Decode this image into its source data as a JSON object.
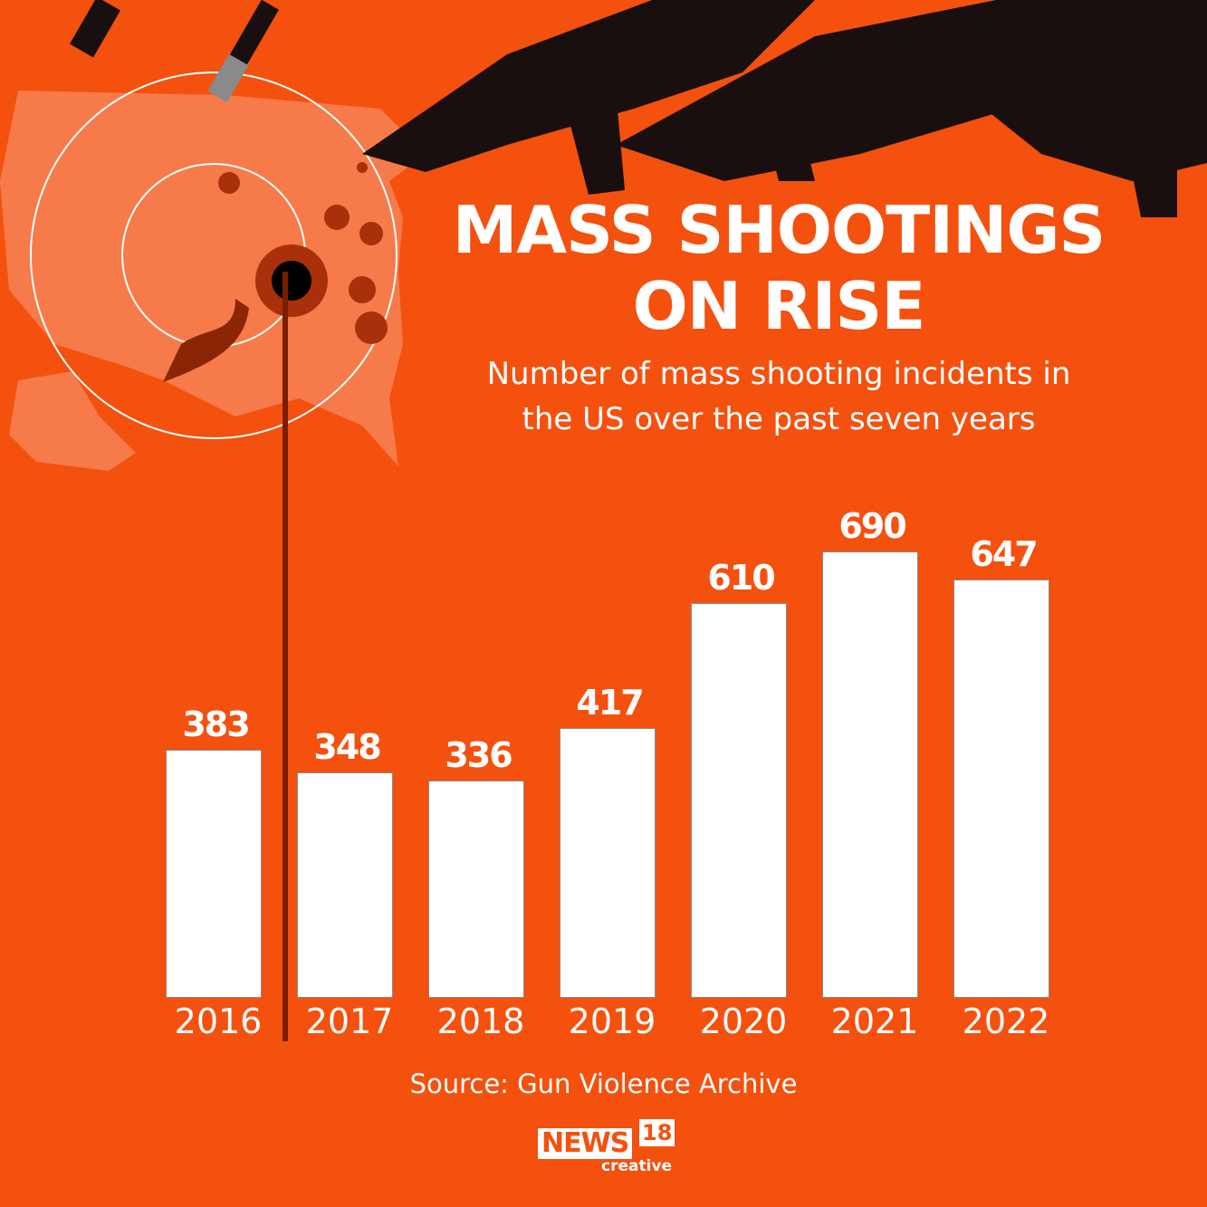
{
  "header": {
    "title_line1": "MASS SHOOTINGS",
    "title_line2": "ON RISE",
    "subtitle_line1": "Number of mass shooting incidents in",
    "subtitle_line2": "the US over the past seven years"
  },
  "footer": {
    "source": "Source: Gun Violence Archive",
    "logo_news": "NEWS",
    "logo_num": "18",
    "logo_creative": "creative"
  },
  "colors": {
    "background": "#f4500e",
    "bar": "#ffffff",
    "map": "#f77a4a",
    "blood": "#7a1e00"
  },
  "chart_data": {
    "type": "bar",
    "title": "MASS SHOOTINGS ON RISE",
    "subtitle": "Number of mass shooting incidents in the US over the past seven years",
    "categories": [
      "2016",
      "2017",
      "2018",
      "2019",
      "2020",
      "2021",
      "2022"
    ],
    "values": [
      383,
      348,
      336,
      417,
      610,
      690,
      647
    ],
    "labels": [
      "383",
      "348",
      "336",
      "417",
      "610",
      "690",
      "647"
    ],
    "xlabel": "",
    "ylabel": "",
    "grid": false,
    "legend": "none",
    "source": "Source: Gun Violence Archive"
  }
}
